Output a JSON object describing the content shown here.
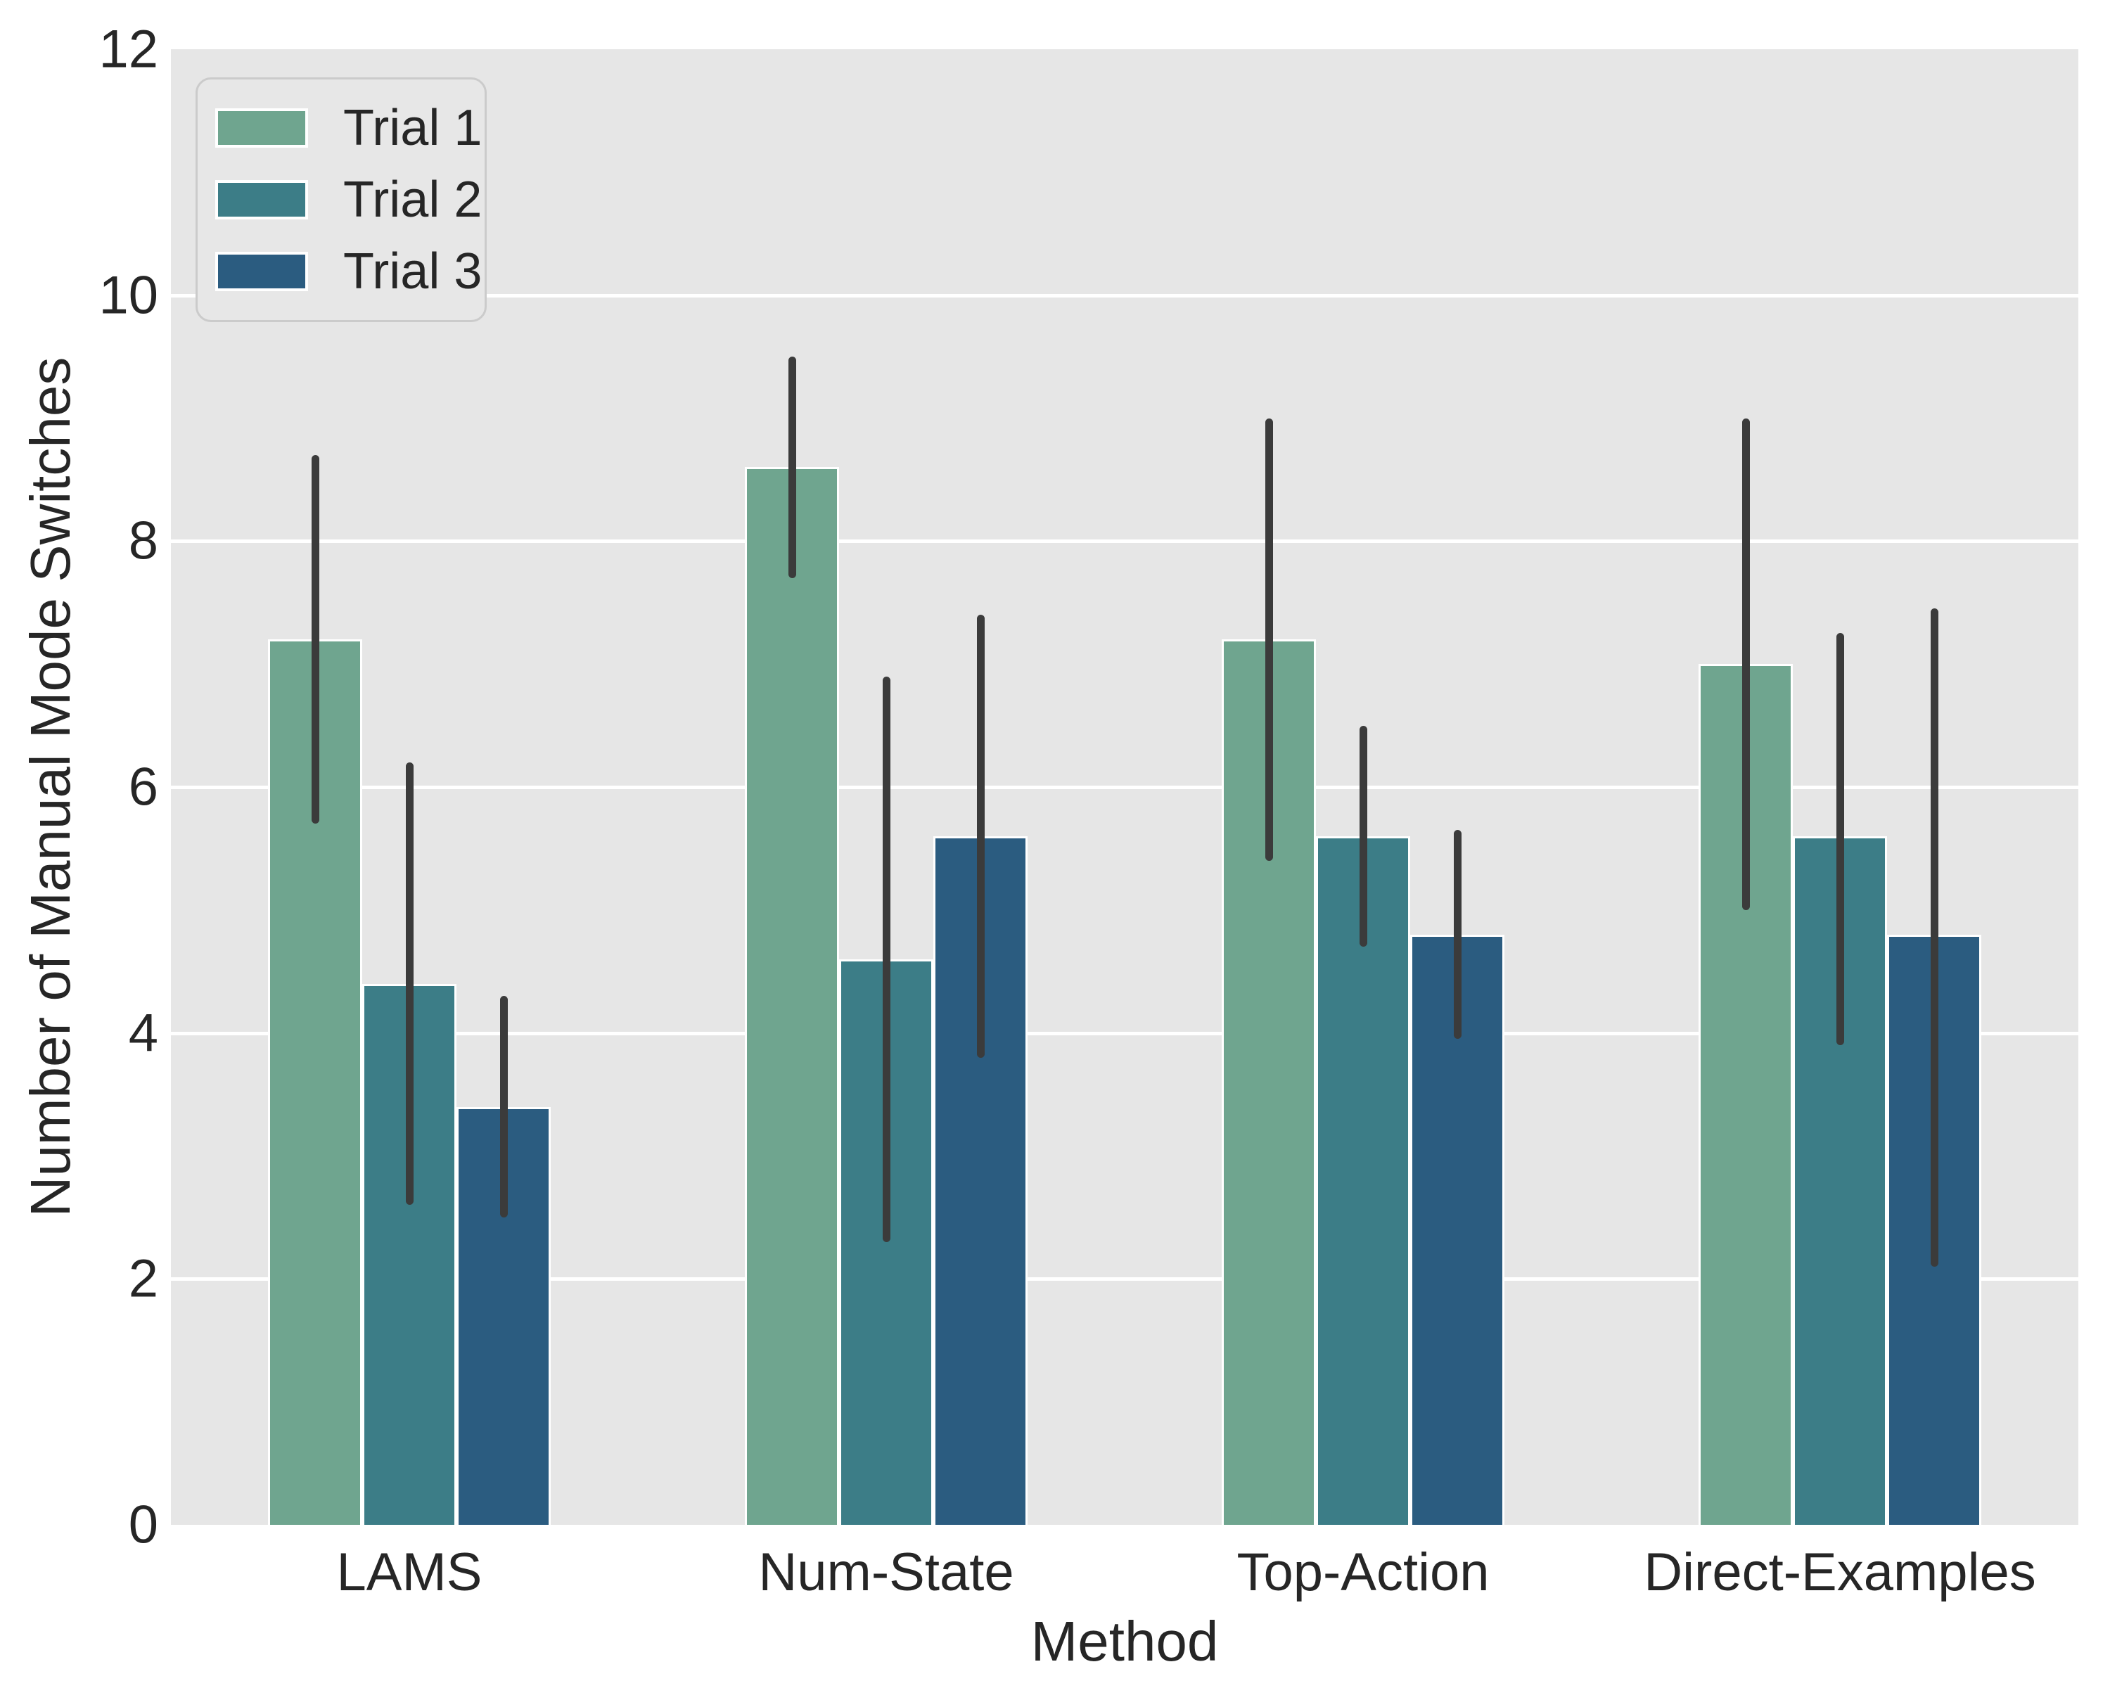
{
  "figure": {
    "background": "#ffffff",
    "plot_background": "#E6E6E6",
    "grid_color": "#ffffff",
    "text_color": "#262626"
  },
  "chart_data": {
    "type": "bar",
    "title": "",
    "xlabel": "Method",
    "ylabel": "Number of Manual Mode Switches",
    "categories": [
      "LAMS",
      "Num-State",
      "Top-Action",
      "Direct-Examples"
    ],
    "series": [
      {
        "name": "Trial 1",
        "color": "#6FA58F",
        "values": [
          7.2,
          8.6,
          7.2,
          7.0
        ],
        "err_low": [
          5.7,
          7.7,
          5.4,
          5.0
        ],
        "err_high": [
          8.7,
          9.5,
          9.0,
          9.0
        ]
      },
      {
        "name": "Trial 2",
        "color": "#3C7D87",
        "values": [
          4.4,
          4.6,
          5.6,
          5.6
        ],
        "err_low": [
          2.6,
          2.3,
          4.7,
          3.9
        ],
        "err_high": [
          6.2,
          6.9,
          6.5,
          7.25
        ]
      },
      {
        "name": "Trial 3",
        "color": "#2B5C80",
        "values": [
          3.4,
          5.6,
          4.8,
          4.8
        ],
        "err_low": [
          2.5,
          3.8,
          3.95,
          2.1
        ],
        "err_high": [
          4.3,
          7.4,
          5.65,
          7.45
        ]
      }
    ],
    "yticks": [
      "0",
      "2",
      "4",
      "6",
      "8",
      "10",
      "12"
    ],
    "ylim": [
      0,
      12
    ],
    "grid": "horizontal",
    "legend_position": "upper-left",
    "error_bar_color": "#3B3B3B"
  }
}
